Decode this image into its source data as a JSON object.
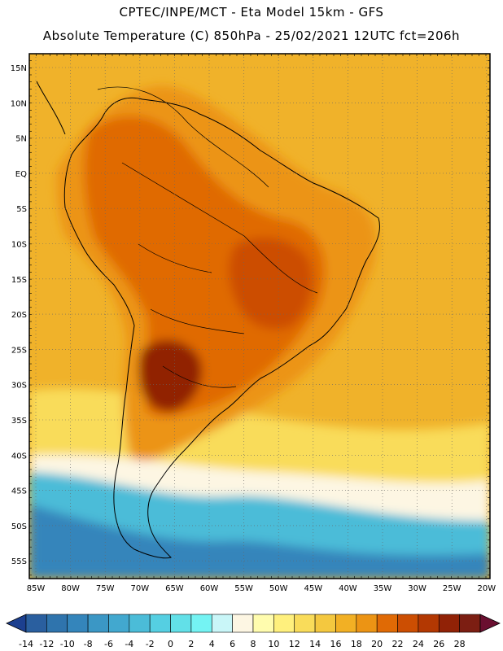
{
  "header": {
    "title_line1": "CPTEC/INPE/MCT -  Eta Model 15km - GFS",
    "title_line2": "Absolute Temperature (C) 850hPa - 25/02/2021 12UTC fct=206h"
  },
  "axes": {
    "lat_labels": [
      "15N",
      "10N",
      "5N",
      "EQ",
      "5S",
      "10S",
      "15S",
      "20S",
      "25S",
      "30S",
      "35S",
      "40S",
      "45S",
      "50S",
      "55S"
    ],
    "lon_labels": [
      "85W",
      "80W",
      "75W",
      "70W",
      "65W",
      "60W",
      "55W",
      "50W",
      "45W",
      "40W",
      "35W",
      "30W",
      "25W",
      "20W"
    ]
  },
  "legend": {
    "values": [
      -14,
      -12,
      -10,
      -8,
      -6,
      -4,
      -2,
      0,
      2,
      4,
      6,
      8,
      10,
      12,
      14,
      16,
      18,
      20,
      22,
      24,
      26,
      28
    ],
    "colors": [
      "#1c3f8f",
      "#2a5f9f",
      "#2f74ad",
      "#3485bb",
      "#3b97c5",
      "#42a8cf",
      "#4bbcd8",
      "#55cfe2",
      "#62e0e8",
      "#74f3f3",
      "#c9f6f8",
      "#fdf6e3",
      "#fffcae",
      "#fff07d",
      "#f9dc5a",
      "#f4c83f",
      "#f2b024",
      "#ec9414",
      "#e06a05",
      "#cc4e02",
      "#b33802",
      "#912206",
      "#7c1e12",
      "#6a0f30"
    ]
  },
  "map": {
    "colors": {
      "warm_bg": "#f0b22a",
      "mid_orange": "#ec9414",
      "dark_orange": "#e06a05",
      "red": "#cc4e02",
      "dark_red": "#912206",
      "pale_yellow": "#f9dc5a",
      "cream": "#fdf6e3",
      "cyan": "#4bbcd8",
      "blue": "#3485bb"
    }
  }
}
